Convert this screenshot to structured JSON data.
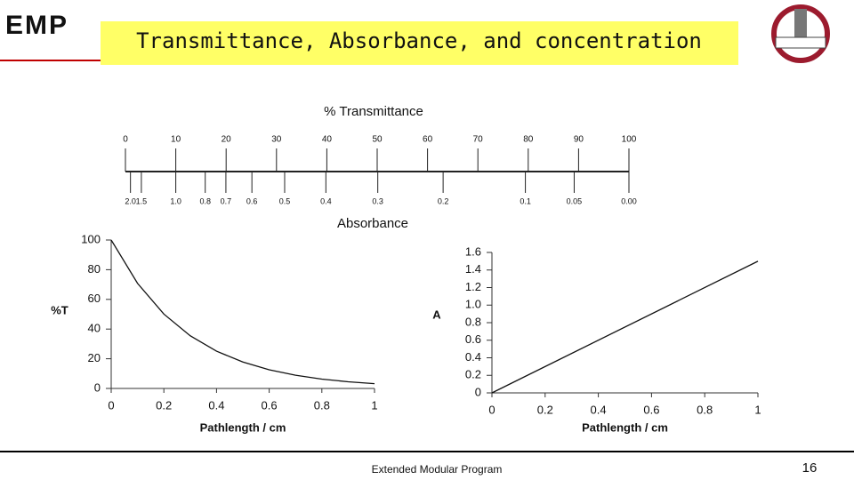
{
  "logo_text": "EMP",
  "title": "Transmittance, Absorbance, and concentration",
  "footer": "Extended Modular Program",
  "page_number": "16",
  "chart_data": [
    {
      "type": "scale",
      "title": "% Transmittance",
      "subtitle": "Absorbance",
      "xlim": [
        0,
        100
      ],
      "xticks": [
        0,
        10,
        20,
        30,
        40,
        50,
        60,
        70,
        80,
        90,
        100
      ],
      "x2ticks": [
        {
          "value": 2,
          "label": "2.0"
        },
        1.5,
        {
          "value": 1,
          "label": "1.0"
        },
        0.8,
        0.7,
        0.6,
        0.5,
        0.4,
        0.3,
        0.2,
        0.1,
        0.05,
        {
          "value": 0,
          "label": "0.00"
        }
      ],
      "color": "#222222"
    },
    {
      "type": "line",
      "xlabel": "Pathlength / cm",
      "ylabel": "%T",
      "x": [
        0,
        0.1,
        0.2,
        0.3,
        0.4,
        0.5,
        0.6,
        0.7,
        0.8,
        0.9,
        1.0
      ],
      "values": [
        100,
        70.8,
        50.1,
        35.5,
        25.1,
        17.8,
        12.6,
        8.9,
        6.3,
        4.5,
        3.2
      ],
      "xlim": [
        0,
        1
      ],
      "xticks": [
        0,
        0.2,
        0.4,
        0.6,
        0.8,
        1
      ],
      "ylim": [
        0,
        100
      ],
      "yticks": [
        0,
        20,
        40,
        60,
        80,
        100
      ],
      "color": "#111111"
    },
    {
      "type": "line",
      "xlabel": "Pathlength / cm",
      "ylabel": "A",
      "x": [
        0,
        1
      ],
      "values": [
        0,
        1.5
      ],
      "xlim": [
        0,
        1
      ],
      "xticks": [
        0,
        0.2,
        0.4,
        0.6,
        0.8,
        1
      ],
      "ylim": [
        0,
        1.6
      ],
      "yticks": [
        0,
        0.2,
        0.4,
        0.6,
        0.8,
        {
          "value": 1,
          "label": "1.0"
        },
        1.2,
        1.4,
        1.6
      ],
      "color": "#111111"
    }
  ]
}
